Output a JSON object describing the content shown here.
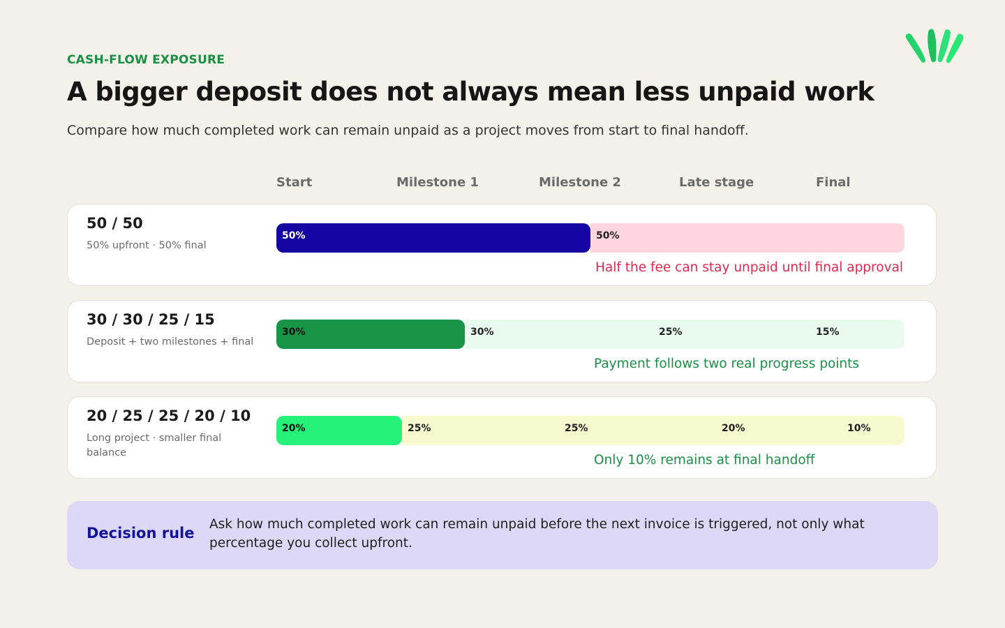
{
  "header": {
    "eyebrow": "CASH-FLOW EXPOSURE",
    "title": "A bigger deposit does not always mean less unpaid work",
    "subtitle": "Compare how much completed work can remain unpaid as a project moves from start to final handoff."
  },
  "brand": {
    "logo_icon": "leaf-sprout-icon",
    "color": "#2de07a"
  },
  "chart_data": {
    "type": "bar",
    "stacked": true,
    "orientation": "horizontal",
    "x_unit": "percent of fee",
    "xlim": [
      0,
      100
    ],
    "stage_labels": [
      "Start",
      "Milestone 1",
      "Milestone 2",
      "Late stage",
      "Final"
    ],
    "rows": [
      {
        "name": "50 / 50",
        "description": "50% upfront · 50% final",
        "segments": [
          {
            "value": 50,
            "label": "50%",
            "color": "#1505a2",
            "text_color": "#ffffff"
          },
          {
            "value": 50,
            "label": "50%",
            "color": "#ffd6df",
            "text_color": "#222222"
          }
        ],
        "note": "Half the fee can stay unpaid until final approval",
        "note_color": "#e0294f"
      },
      {
        "name": "30 / 30 / 25 / 15",
        "description": "Deposit + two milestones + final",
        "segments": [
          {
            "value": 30,
            "label": "30%",
            "color": "#189447",
            "text_color": "#111111"
          },
          {
            "value": 30,
            "label": "30%",
            "color": "#e9faef",
            "text_color": "#222222"
          },
          {
            "value": 25,
            "label": "25%",
            "color": "#e9faef",
            "text_color": "#222222"
          },
          {
            "value": 15,
            "label": "15%",
            "color": "#e9faef",
            "text_color": "#222222"
          }
        ],
        "note": "Payment follows two real progress points",
        "note_color": "#1a8f45"
      },
      {
        "name": "20 / 25 / 25 / 20 / 10",
        "description": "Long project · smaller final balance",
        "segments": [
          {
            "value": 20,
            "label": "20%",
            "color": "#26f27a",
            "text_color": "#111111"
          },
          {
            "value": 25,
            "label": "25%",
            "color": "#f7f9cf",
            "text_color": "#222222"
          },
          {
            "value": 25,
            "label": "25%",
            "color": "#f7f9cf",
            "text_color": "#222222"
          },
          {
            "value": 20,
            "label": "20%",
            "color": "#f7f9cf",
            "text_color": "#222222"
          },
          {
            "value": 10,
            "label": "10%",
            "color": "#f7f9cf",
            "text_color": "#222222"
          }
        ],
        "note": "Only 10% remains at final handoff",
        "note_color": "#1a8f45"
      }
    ]
  },
  "decision": {
    "label": "Decision rule",
    "text": "Ask how much completed work can remain unpaid before the next invoice is triggered, not only what percentage you collect upfront."
  }
}
